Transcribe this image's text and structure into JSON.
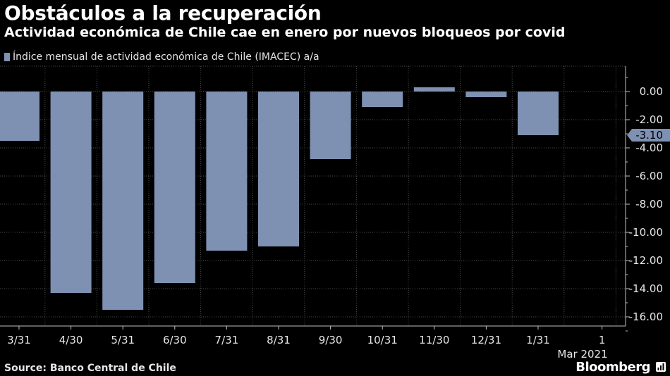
{
  "header": {
    "title": "Obstáculos a la recuperación",
    "subtitle": "Actividad económica de Chile cae en enero por nuevos bloqueos por covid"
  },
  "legend": {
    "label": "Índice mensual de actividad económica de Chile (IMACEC) a/a",
    "color": "#7f91b2"
  },
  "footer": {
    "source": "Source: Banco Central de Chile",
    "brand": "Bloomberg"
  },
  "chart_data": {
    "type": "bar",
    "categories": [
      "3/31",
      "4/30",
      "5/31",
      "6/30",
      "7/31",
      "8/31",
      "9/30",
      "10/31",
      "11/30",
      "12/31",
      "1/31"
    ],
    "extra_ticks": [
      "1"
    ],
    "x_year_label": "Mar 2021",
    "values": [
      -3.5,
      -14.3,
      -15.5,
      -13.6,
      -11.3,
      -11.0,
      -4.8,
      -1.1,
      0.3,
      -0.4,
      -3.1
    ],
    "ylim": [
      -17,
      1.8
    ],
    "yticks": [
      "0.00",
      "-2.00",
      "-4.00",
      "-6.00",
      "-8.00",
      "-10.00",
      "-12.00",
      "-14.00",
      "-16.00"
    ],
    "ytick_values": [
      0,
      -2,
      -4,
      -6,
      -8,
      -10,
      -12,
      -14,
      -16
    ],
    "last_value_label": "-3.10",
    "last_value": -3.1,
    "y_axis_side": "right",
    "grid": true,
    "colors": {
      "bar": "#7f91b2",
      "grid": "#4a4a4a",
      "axis": "#bfbfbf",
      "text": "#e6e6e6"
    }
  }
}
